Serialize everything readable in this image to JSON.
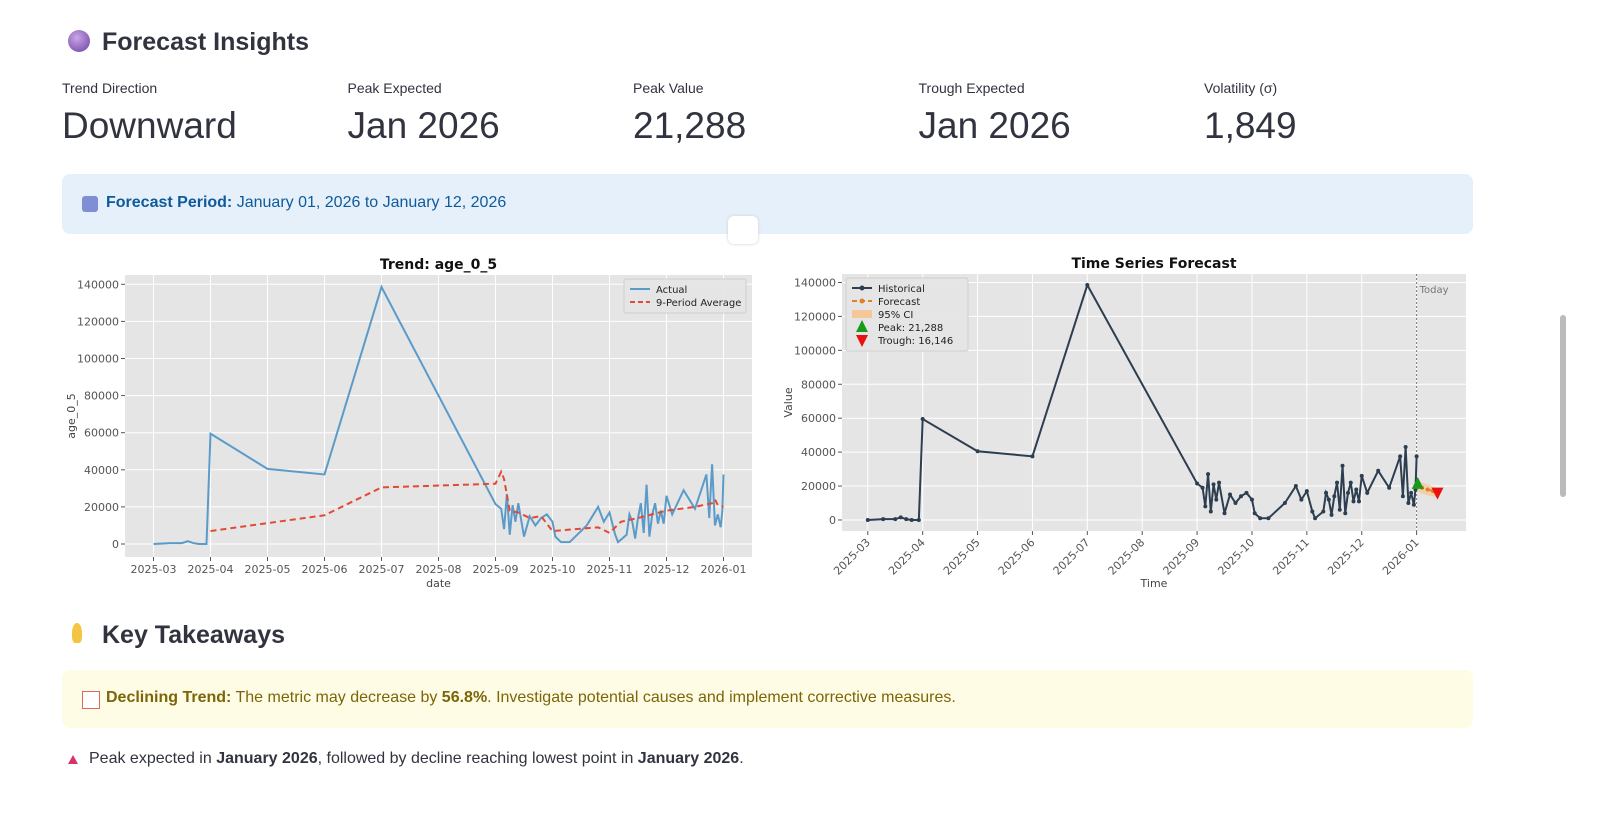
{
  "header": {
    "title": "Forecast Insights"
  },
  "metrics": [
    {
      "label": "Trend Direction",
      "value": "Downward"
    },
    {
      "label": "Peak Expected",
      "value": "Jan 2026"
    },
    {
      "label": "Peak Value",
      "value": "21,288"
    },
    {
      "label": "Trough Expected",
      "value": "Jan 2026"
    },
    {
      "label": "Volatility (σ)",
      "value": "1,849"
    }
  ],
  "info": {
    "label": "Forecast Period:",
    "text": "January 01, 2026 to January 12, 2026"
  },
  "chart_data": [
    {
      "type": "line",
      "title": "Trend: age_0_5",
      "x_label": "date",
      "y_label": "age_0_5",
      "xlim": [
        -0.5,
        10.5
      ],
      "ylim": [
        -7000,
        145000
      ],
      "xticks": [
        {
          "value": 0,
          "label": "2025-03"
        },
        {
          "value": 1,
          "label": "2025-04"
        },
        {
          "value": 2,
          "label": "2025-05"
        },
        {
          "value": 3,
          "label": "2025-06"
        },
        {
          "value": 4,
          "label": "2025-07"
        },
        {
          "value": 5,
          "label": "2025-08"
        },
        {
          "value": 6,
          "label": "2025-09"
        },
        {
          "value": 7,
          "label": "2025-10"
        },
        {
          "value": 8,
          "label": "2025-11"
        },
        {
          "value": 9,
          "label": "2025-12"
        },
        {
          "value": 10,
          "label": "2026-01"
        }
      ],
      "yticks": [
        0,
        20000,
        40000,
        60000,
        80000,
        100000,
        120000,
        140000
      ],
      "grid": true,
      "legend": "upper right",
      "series": [
        {
          "name": "Actual",
          "color": "#5b9bc9",
          "dash": false,
          "marker": false,
          "x": [
            0,
            0.28,
            0.5,
            0.6,
            0.7,
            0.8,
            0.93,
            1,
            2,
            3,
            4,
            6,
            6.1,
            6.15,
            6.2,
            6.25,
            6.3,
            6.35,
            6.4,
            6.5,
            6.6,
            6.7,
            6.8,
            6.9,
            7,
            7.05,
            7.15,
            7.3,
            7.6,
            7.8,
            7.9,
            8,
            8.1,
            8.15,
            8.3,
            8.35,
            8.4,
            8.45,
            8.5,
            8.55,
            8.6,
            8.65,
            8.7,
            8.75,
            8.8,
            8.85,
            8.9,
            8.95,
            9,
            9.1,
            9.3,
            9.5,
            9.7,
            9.75,
            9.8,
            9.85,
            9.9,
            9.95,
            9.98,
            10
          ],
          "values": [
            0,
            500,
            500,
            1500,
            500,
            0,
            0,
            59500,
            40500,
            37500,
            138500,
            21500,
            19000,
            8000,
            27000,
            5000,
            21000,
            12000,
            22000,
            4000,
            15000,
            10000,
            14000,
            16000,
            12000,
            4000,
            1000,
            1000,
            10000,
            20000,
            12000,
            17000,
            5000,
            1000,
            5000,
            16000,
            12000,
            3000,
            14000,
            22000,
            6000,
            32000,
            4000,
            16000,
            22000,
            11000,
            18000,
            11000,
            26000,
            16000,
            29000,
            19000,
            37500,
            14000,
            43000,
            10000,
            16000,
            9000,
            18000,
            37500
          ]
        },
        {
          "name": "9-Period Average",
          "color": "#e24a33",
          "dash": true,
          "marker": false,
          "x": [
            1,
            3,
            4,
            6,
            6.1,
            6.15,
            6.25,
            6.4,
            6.6,
            6.8,
            7,
            7.4,
            7.8,
            8,
            8.2,
            8.5,
            9,
            9.5,
            9.8,
            9.85,
            9.9,
            10
          ],
          "values": [
            7000,
            15500,
            30500,
            32500,
            39000,
            35000,
            18000,
            17000,
            14000,
            15000,
            7000,
            8000,
            9000,
            6000,
            12000,
            14000,
            18000,
            20000,
            22000,
            24000,
            21000,
            20000
          ]
        }
      ]
    },
    {
      "type": "line",
      "title": "Time Series Forecast",
      "x_label": "Time",
      "y_label": "Value",
      "xlim": [
        -0.47,
        10.9
      ],
      "ylim": [
        -6500,
        145000
      ],
      "xticks": [
        {
          "value": 0,
          "label": "2025-03"
        },
        {
          "value": 1,
          "label": "2025-04"
        },
        {
          "value": 2,
          "label": "2025-05"
        },
        {
          "value": 3,
          "label": "2025-06"
        },
        {
          "value": 4,
          "label": "2025-07"
        },
        {
          "value": 5,
          "label": "2025-08"
        },
        {
          "value": 6,
          "label": "2025-09"
        },
        {
          "value": 7,
          "label": "2025-10"
        },
        {
          "value": 8,
          "label": "2025-11"
        },
        {
          "value": 9,
          "label": "2025-12"
        },
        {
          "value": 10,
          "label": "2026-01"
        }
      ],
      "yticks": [
        0,
        20000,
        40000,
        60000,
        80000,
        100000,
        120000,
        140000
      ],
      "grid": true,
      "legend": "upper left",
      "series": [
        {
          "name": "Historical",
          "color": "#2c3e50",
          "dash": false,
          "marker": true,
          "x": [
            0,
            0.28,
            0.5,
            0.6,
            0.7,
            0.8,
            0.93,
            1,
            2,
            3,
            4,
            6,
            6.1,
            6.15,
            6.2,
            6.25,
            6.3,
            6.35,
            6.4,
            6.5,
            6.6,
            6.7,
            6.8,
            6.9,
            7,
            7.05,
            7.15,
            7.3,
            7.6,
            7.8,
            7.9,
            8,
            8.1,
            8.15,
            8.3,
            8.35,
            8.4,
            8.45,
            8.5,
            8.55,
            8.6,
            8.65,
            8.7,
            8.75,
            8.8,
            8.85,
            8.9,
            8.95,
            9,
            9.1,
            9.3,
            9.5,
            9.7,
            9.75,
            9.8,
            9.85,
            9.9,
            9.95,
            9.98,
            10
          ],
          "values": [
            0,
            500,
            500,
            1500,
            500,
            0,
            0,
            59500,
            40500,
            37500,
            138500,
            21500,
            19000,
            8000,
            27000,
            5000,
            21000,
            12000,
            22000,
            4000,
            15000,
            10000,
            14000,
            16000,
            12000,
            4000,
            1000,
            1000,
            10000,
            20000,
            12000,
            17000,
            5000,
            1000,
            5000,
            16000,
            12000,
            3000,
            14000,
            22000,
            6000,
            32000,
            4000,
            16000,
            22000,
            11000,
            18000,
            11000,
            26000,
            16000,
            29000,
            19000,
            37500,
            14000,
            43000,
            10000,
            16000,
            9000,
            18000,
            37500
          ]
        },
        {
          "name": "Forecast",
          "color": "#e67e22",
          "dash": true,
          "marker": true,
          "x": [
            10,
            10.1,
            10.2,
            10.3,
            10.38
          ],
          "values": [
            20000,
            19000,
            18000,
            17000,
            16146
          ]
        }
      ],
      "ci": {
        "name": "95% CI",
        "color": "#f5c89b",
        "x": [
          10,
          10.1,
          10.2,
          10.3,
          10.38
        ],
        "lower": [
          17000,
          15500,
          14500,
          14000,
          13500
        ],
        "upper": [
          23000,
          22000,
          21000,
          19500,
          18500
        ]
      },
      "peak": {
        "label": "Peak: 21,288",
        "x": 10.02,
        "value": 21288,
        "color": "#1a9a1a"
      },
      "trough": {
        "label": "Trough: 16,146",
        "x": 10.38,
        "value": 16146,
        "color": "#e8110f"
      },
      "vline": {
        "x": 10,
        "label": "Today"
      }
    }
  ],
  "takeaways": {
    "title": "Key Takeaways",
    "warning": [
      {
        "text": "Declining Trend:",
        "bold": true
      },
      {
        "text": " The metric may decrease by ",
        "bold": false
      },
      {
        "text": "56.8%",
        "bold": true
      },
      {
        "text": ". Investigate potential causes and implement corrective measures.",
        "bold": false
      }
    ],
    "bullet": [
      {
        "text": "Peak expected in ",
        "bold": false
      },
      {
        "text": "January 2026",
        "bold": true
      },
      {
        "text": ", followed by decline reaching lowest point in ",
        "bold": false
      },
      {
        "text": "January 2026",
        "bold": true
      },
      {
        "text": ".",
        "bold": false
      }
    ]
  }
}
